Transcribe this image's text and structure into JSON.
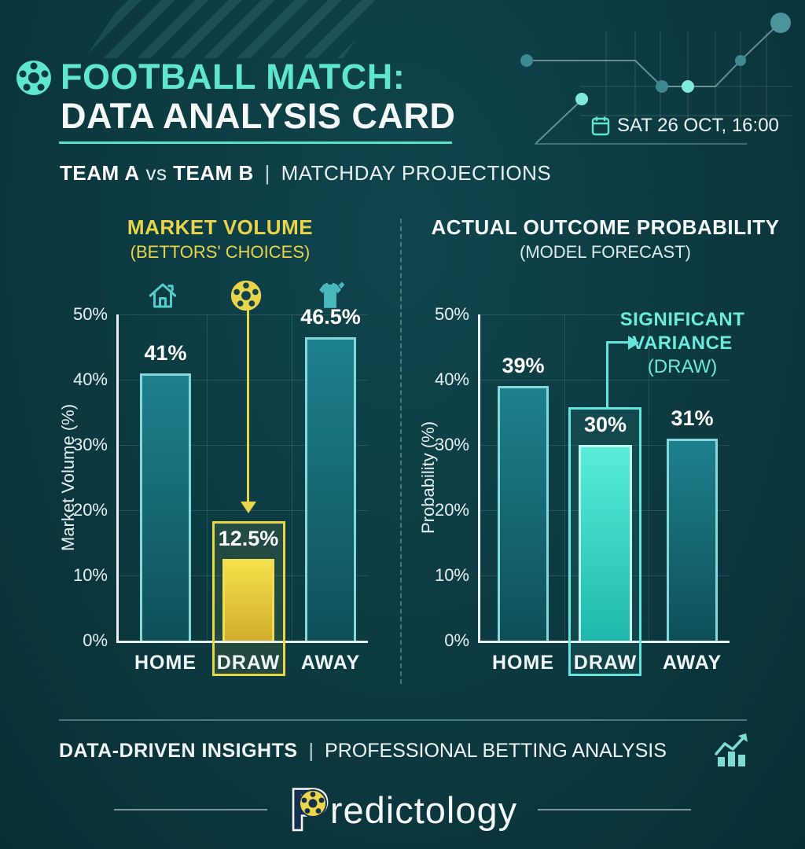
{
  "header": {
    "football_icon": "football-icon",
    "title_line1": "FOOTBALL MATCH:",
    "title_line2": "DATA ANALYSIS CARD",
    "calendar_icon": "calendar-icon",
    "match_date": "SAT 26 OCT, 16:00",
    "subtitle": {
      "team_a": "TEAM A",
      "vs": "vs",
      "team_b": "TEAM B",
      "divider": "|",
      "tagline": "MATCHDAY PROJECTIONS"
    }
  },
  "chart_data": [
    {
      "type": "bar",
      "title": "MARKET VOLUME",
      "subtitle": "(BETTORS' CHOICES)",
      "ylabel": "Market Volume (%)",
      "xlabel": "",
      "categories": [
        "HOME",
        "DRAW",
        "AWAY"
      ],
      "values": [
        41,
        12.5,
        46.5
      ],
      "value_labels": [
        "41%",
        "12.5%",
        "46.5%"
      ],
      "ylim": [
        0,
        50
      ],
      "yticks": [
        "50%",
        "40%",
        "30%",
        "20%",
        "10%",
        "0%"
      ],
      "grid": true,
      "legend": "none",
      "highlight": "DRAW",
      "highlight_color": "#e9d54b",
      "bar_icons": [
        "home-icon",
        "football-icon",
        "jersey-icon"
      ]
    },
    {
      "type": "bar",
      "title": "ACTUAL OUTCOME PROBABILITY",
      "subtitle": "(MODEL FORECAST)",
      "ylabel": "Probability (%)",
      "xlabel": "",
      "categories": [
        "HOME",
        "DRAW",
        "AWAY"
      ],
      "values": [
        39,
        30,
        31
      ],
      "value_labels": [
        "39%",
        "30%",
        "31%"
      ],
      "ylim": [
        0,
        50
      ],
      "yticks": [
        "50%",
        "40%",
        "30%",
        "20%",
        "10%",
        "0%"
      ],
      "grid": true,
      "legend": "none",
      "highlight": "DRAW",
      "highlight_color": "#5ee8d6",
      "annotation": {
        "line1": "SIGNIFICANT",
        "line2": "VARIANCE",
        "line3": "(DRAW)"
      }
    }
  ],
  "footer": {
    "insights": "DATA-DRIVEN INSIGHTS",
    "divider": "|",
    "analysis": "PROFESSIONAL BETTING ANALYSIS",
    "chart_icon": "trend-chart-icon",
    "brand_initial": "P",
    "brand_rest": "redictology"
  },
  "colors": {
    "background": "#0c3940",
    "accent_teal": "#5fe6cf",
    "accent_yellow": "#e9d54b",
    "accent_cyan": "#5ee8d6",
    "bar_teal": "#177682",
    "text_white": "#f2f7f7"
  }
}
